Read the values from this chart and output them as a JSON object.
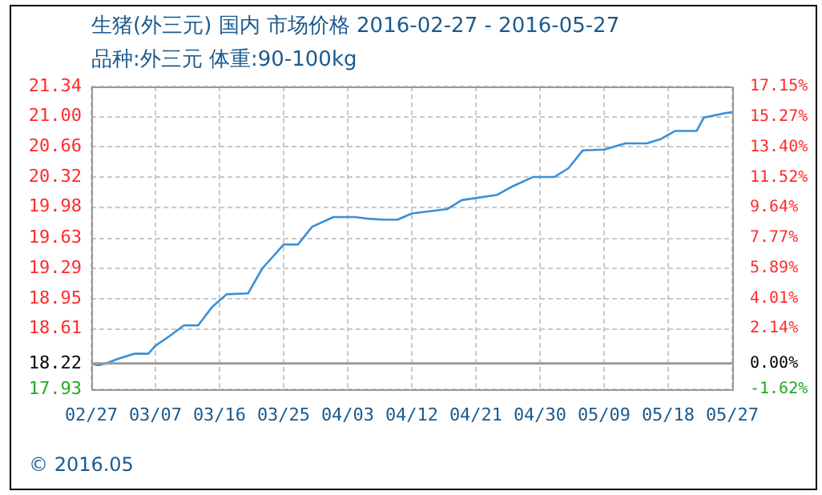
{
  "chart_data": {
    "type": "line",
    "title": "生猪(外三元) 国内 市场价格 2016-02-27 - 2016-05-27",
    "subtitle": "品种:外三元 体重:90-100kg",
    "annotations": [
      "© 2016.05"
    ],
    "x": [
      "2016-02-27",
      "2016-02-28",
      "2016-02-29",
      "2016-03-01",
      "2016-03-02",
      "2016-03-04",
      "2016-03-06",
      "2016-03-07",
      "2016-03-09",
      "2016-03-11",
      "2016-03-13",
      "2016-03-15",
      "2016-03-17",
      "2016-03-20",
      "2016-03-22",
      "2016-03-25",
      "2016-03-27",
      "2016-03-29",
      "2016-04-01",
      "2016-04-04",
      "2016-04-06",
      "2016-04-08",
      "2016-04-10",
      "2016-04-12",
      "2016-04-17",
      "2016-04-19",
      "2016-04-24",
      "2016-04-26",
      "2016-04-29",
      "2016-05-02",
      "2016-05-04",
      "2016-05-06",
      "2016-05-09",
      "2016-05-12",
      "2016-05-15",
      "2016-05-17",
      "2016-05-19",
      "2016-05-22",
      "2016-05-23",
      "2016-05-26",
      "2016-05-27"
    ],
    "series": [
      {
        "color": "#3a8fd6",
        "values": [
          18.22,
          18.2,
          18.22,
          18.25,
          18.28,
          18.33,
          18.33,
          18.42,
          18.53,
          18.65,
          18.65,
          18.86,
          19.0,
          19.01,
          19.29,
          19.56,
          19.56,
          19.76,
          19.87,
          19.87,
          19.85,
          19.84,
          19.84,
          19.91,
          19.96,
          20.06,
          20.12,
          20.21,
          20.32,
          20.32,
          20.42,
          20.62,
          20.63,
          20.7,
          20.7,
          20.75,
          20.84,
          20.84,
          20.99,
          21.04,
          21.05
        ]
      }
    ],
    "xlim": [
      "2016-02-27",
      "2016-05-27"
    ],
    "xticks": [
      {
        "value": "2016-02-27",
        "label": "02/27"
      },
      {
        "value": "2016-03-07",
        "label": "03/07"
      },
      {
        "value": "2016-03-16",
        "label": "03/16"
      },
      {
        "value": "2016-03-25",
        "label": "03/25"
      },
      {
        "value": "2016-04-03",
        "label": "04/03"
      },
      {
        "value": "2016-04-12",
        "label": "04/12"
      },
      {
        "value": "2016-04-21",
        "label": "04/21"
      },
      {
        "value": "2016-04-30",
        "label": "04/30"
      },
      {
        "value": "2016-05-09",
        "label": "05/09"
      },
      {
        "value": "2016-05-18",
        "label": "05/18"
      },
      {
        "value": "2016-05-27",
        "label": "05/27"
      }
    ],
    "ylim": [
      17.93,
      21.34
    ],
    "yticks": [
      {
        "value": 17.93,
        "label": "17.93"
      },
      {
        "value": 18.22,
        "label": "18.22"
      },
      {
        "value": 18.61,
        "label": "18.61"
      },
      {
        "value": 18.95,
        "label": "18.95"
      },
      {
        "value": 19.29,
        "label": "19.29"
      },
      {
        "value": 19.63,
        "label": "19.63"
      },
      {
        "value": 19.98,
        "label": "19.98"
      },
      {
        "value": 20.32,
        "label": "20.32"
      },
      {
        "value": 20.66,
        "label": "20.66"
      },
      {
        "value": 21.0,
        "label": "21.00"
      },
      {
        "value": 21.34,
        "label": "21.34"
      }
    ],
    "y2lim": [
      -1.62,
      17.15
    ],
    "y2ticks": [
      {
        "value": -1.62,
        "label": "-1.62%"
      },
      {
        "value": 0,
        "label": "0.00%"
      },
      {
        "value": 2.14,
        "label": "2.14%"
      },
      {
        "value": 4.01,
        "label": "4.01%"
      },
      {
        "value": 5.89,
        "label": "5.89%"
      },
      {
        "value": 7.77,
        "label": "7.77%"
      },
      {
        "value": 9.64,
        "label": "9.64%"
      },
      {
        "value": 11.52,
        "label": "11.52%"
      },
      {
        "value": 13.4,
        "label": "13.40%"
      },
      {
        "value": 15.27,
        "label": "15.27%"
      },
      {
        "value": 17.15,
        "label": "17.15%"
      }
    ],
    "ref_lines": [
      {
        "axis": "y",
        "value": 18.22,
        "color": "#999999"
      }
    ],
    "grid": true,
    "marker": "none",
    "line_style": "solid"
  }
}
